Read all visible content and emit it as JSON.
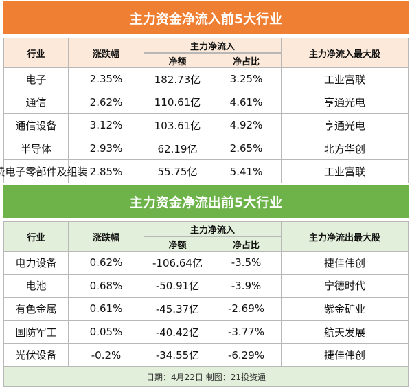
{
  "inflow": {
    "title": "主力资金净流入前5大行业",
    "header": {
      "industry": "行业",
      "change": "涨跌幅",
      "group": "主力净流入",
      "amount": "净额",
      "ratio": "净占比",
      "top_stock": "主力净流入最大股"
    },
    "rows": [
      [
        "电子",
        "2.35%",
        "182.73亿",
        "3.25%",
        "工业富联"
      ],
      [
        "通信",
        "2.62%",
        "110.61亿",
        "4.61%",
        "亨通光电"
      ],
      [
        "通信设备",
        "3.12%",
        "103.61亿",
        "4.92%",
        "亨通光电"
      ],
      [
        "半导体",
        "2.93%",
        "62.19亿",
        "2.65%",
        "北方华创"
      ],
      [
        "消费电子零部件及组装",
        "2.85%",
        "55.75亿",
        "5.41%",
        "工业富联"
      ]
    ]
  },
  "outflow": {
    "title": "主力资金净流出前5大行业",
    "header": {
      "industry": "行业",
      "change": "涨跌幅",
      "group": "主力净流入",
      "amount": "净额",
      "ratio": "净占比",
      "top_stock": "主力净流出最大股"
    },
    "rows": [
      [
        "电力设备",
        "0.62%",
        "-106.64亿",
        "-3.5%",
        "捷佳伟创"
      ],
      [
        "电池",
        "0.68%",
        "-50.91亿",
        "-3.9%",
        "宁德时代"
      ],
      [
        "有色金属",
        "0.61%",
        "-45.37亿",
        "-2.69%",
        "紫金矿业"
      ],
      [
        "国防军工",
        "0.05%",
        "-40.42亿",
        "-3.77%",
        "航天发展"
      ],
      [
        "光伏设备",
        "-0.2%",
        "-34.55亿",
        "-6.29%",
        "捷佳伟创"
      ]
    ]
  },
  "footer": "日期：4月22日 制图：21投资通"
}
